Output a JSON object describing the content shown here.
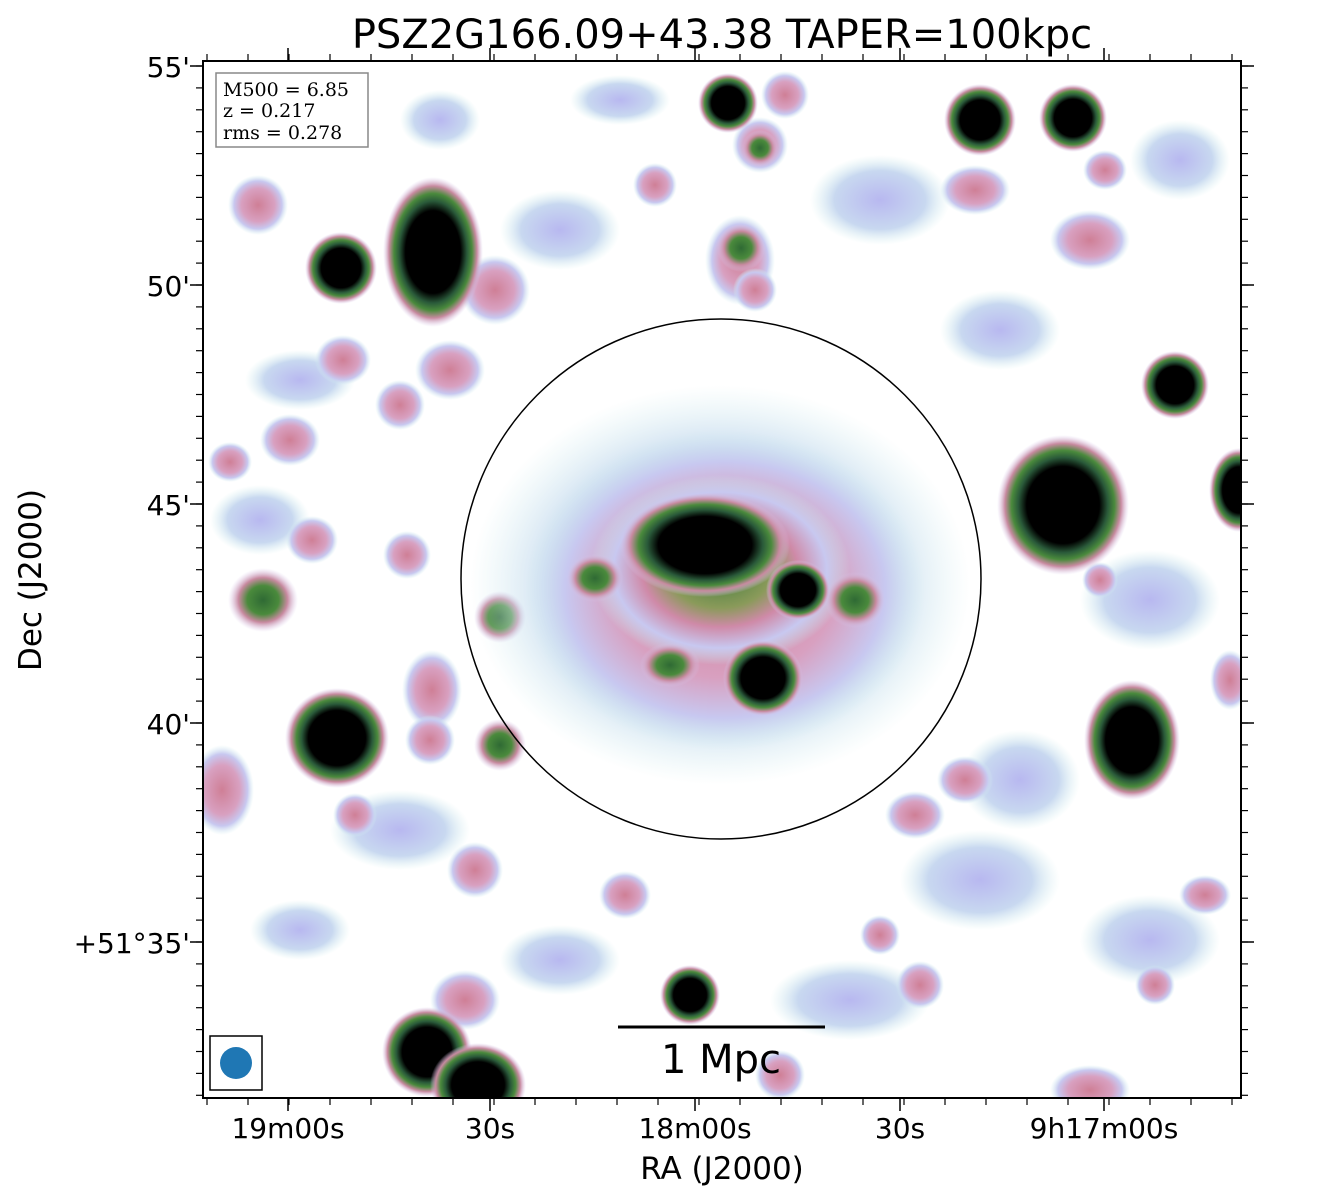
{
  "title": "PSZ2G166.09+43.38 TAPER=100kpc",
  "info_box": {
    "lines": [
      "M500 = 6.85",
      "z = 0.217",
      "rms = 0.278"
    ]
  },
  "axes": {
    "xlabel": "RA (J2000)",
    "ylabel": "Dec (J2000)",
    "x_ticks": [
      "19m00s",
      "30s",
      "18m00s",
      "30s",
      "9h17m00s"
    ],
    "y_ticks": [
      "55'",
      "50'",
      "45'",
      "40'",
      "+51°35'"
    ]
  },
  "scale_bar": {
    "label": "1 Mpc"
  },
  "colors": {
    "background": "#ffffff",
    "frame": "#000000",
    "beam": "#1f77b4",
    "faint_emission": "#c8c8f0",
    "faint_cyan": "#c4e8e8",
    "mid_emission": "#cf8aa8",
    "strong_emission": "#3d7a3a",
    "peak_emission": "#000000"
  },
  "icons": {
    "beam": "beam-ellipse-icon"
  }
}
